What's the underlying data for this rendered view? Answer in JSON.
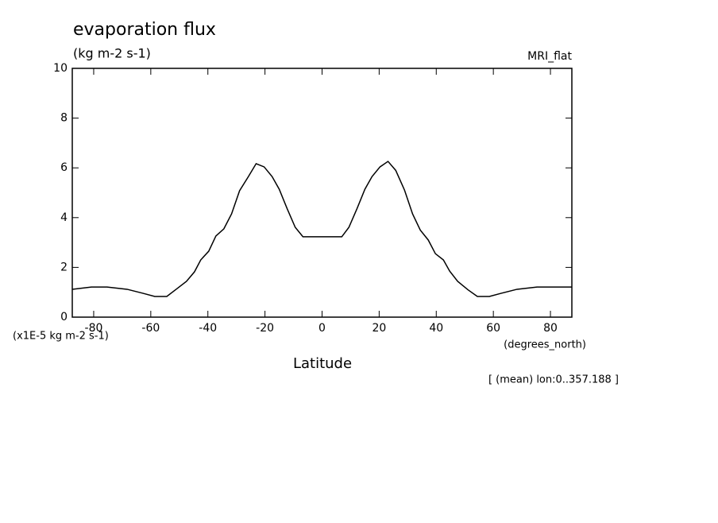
{
  "chart_data": {
    "type": "line",
    "title": "evaporation flux",
    "subtitle": "(kg m-2 s-1)",
    "annotation_right": "MRI_flat",
    "y_unit_label": "(x1E-5 kg m-2 s-1)",
    "x_unit_label": "(degrees_north)",
    "x_label": "Latitude",
    "footnote": "[ (mean) lon:0..357.188 ]",
    "x": [
      -87.5,
      -80.8,
      -75.3,
      -68.3,
      -62.8,
      -58.6,
      -54.4,
      -51.1,
      -47.5,
      -44.7,
      -42.5,
      -39.7,
      -37.2,
      -34.4,
      -31.7,
      -28.9,
      -25.8,
      -23.1,
      -20.3,
      -17.5,
      -15.0,
      -12.2,
      -9.4,
      -6.7,
      6.9,
      9.4,
      12.2,
      15.0,
      17.5,
      20.3,
      23.1,
      25.8,
      28.9,
      31.7,
      34.4,
      37.2,
      39.7,
      42.5,
      44.7,
      47.5,
      51.1,
      54.4,
      58.6,
      62.8,
      68.3,
      75.3,
      80.8,
      87.5
    ],
    "series": [
      {
        "color": "#000000",
        "values": [
          1.12,
          1.21,
          1.21,
          1.12,
          0.96,
          0.83,
          0.83,
          1.12,
          1.44,
          1.82,
          2.3,
          2.65,
          3.26,
          3.55,
          4.15,
          5.08,
          5.65,
          6.17,
          6.04,
          5.65,
          5.14,
          4.35,
          3.61,
          3.23,
          3.23,
          3.61,
          4.35,
          5.14,
          5.65,
          6.04,
          6.26,
          5.9,
          5.1,
          4.15,
          3.5,
          3.1,
          2.55,
          2.3,
          1.85,
          1.44,
          1.1,
          0.83,
          0.83,
          0.96,
          1.12,
          1.21,
          1.21,
          1.21
        ]
      }
    ],
    "xlim": [
      -87.5,
      87.5
    ],
    "ylim": [
      0,
      10
    ],
    "xticks": [
      -80,
      -60,
      -40,
      -20,
      0,
      20,
      40,
      60,
      80
    ],
    "yticks": [
      0,
      2,
      4,
      6,
      8,
      10
    ]
  }
}
